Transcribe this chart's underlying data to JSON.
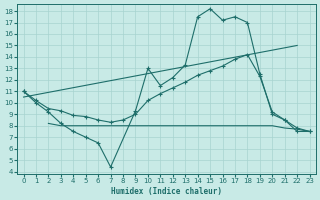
{
  "xlabel": "Humidex (Indice chaleur)",
  "bg_color": "#c8eae6",
  "grid_color": "#a8d4d0",
  "line_color": "#1e6e6a",
  "xlim": [
    -0.5,
    23.5
  ],
  "ylim": [
    3.8,
    18.6
  ],
  "yticks": [
    4,
    5,
    6,
    7,
    8,
    9,
    10,
    11,
    12,
    13,
    14,
    15,
    16,
    17,
    18
  ],
  "xticks": [
    0,
    1,
    2,
    3,
    4,
    5,
    6,
    7,
    8,
    9,
    10,
    11,
    12,
    13,
    14,
    15,
    16,
    17,
    18,
    19,
    20,
    21,
    22,
    23
  ],
  "line1_x": [
    0,
    1,
    2,
    3,
    4,
    5,
    6,
    7,
    9,
    10,
    11,
    12,
    13,
    14,
    15,
    16,
    17,
    18,
    19,
    20,
    21,
    22,
    23
  ],
  "line1_y": [
    11.0,
    10.0,
    9.2,
    8.2,
    7.5,
    7.0,
    6.5,
    4.4,
    9.3,
    13.0,
    11.5,
    12.2,
    13.3,
    17.5,
    18.2,
    17.2,
    17.5,
    17.0,
    12.5,
    9.0,
    8.5,
    7.5,
    7.5
  ],
  "line2_x": [
    0,
    1,
    2,
    3,
    4,
    5,
    6,
    7,
    8,
    9,
    10,
    11,
    12,
    13,
    14,
    15,
    16,
    17,
    18,
    19,
    20,
    21,
    22,
    23
  ],
  "line2_y": [
    11.0,
    10.2,
    9.5,
    9.3,
    8.9,
    8.8,
    8.5,
    8.3,
    8.5,
    9.0,
    10.2,
    10.8,
    11.3,
    11.8,
    12.4,
    12.8,
    13.2,
    13.8,
    14.2,
    12.3,
    9.2,
    8.5,
    7.8,
    7.5
  ],
  "line3_x": [
    0,
    22
  ],
  "line3_y": [
    10.5,
    15.0
  ],
  "line4_x": [
    2,
    3,
    8,
    9,
    10,
    11,
    12,
    13,
    14,
    15,
    16,
    17,
    18,
    19,
    20,
    21,
    22,
    23
  ],
  "line4_y": [
    8.2,
    8.0,
    8.0,
    8.0,
    8.0,
    8.0,
    8.0,
    8.0,
    8.0,
    8.0,
    8.0,
    8.0,
    8.0,
    8.0,
    8.0,
    7.8,
    7.7,
    7.5
  ]
}
